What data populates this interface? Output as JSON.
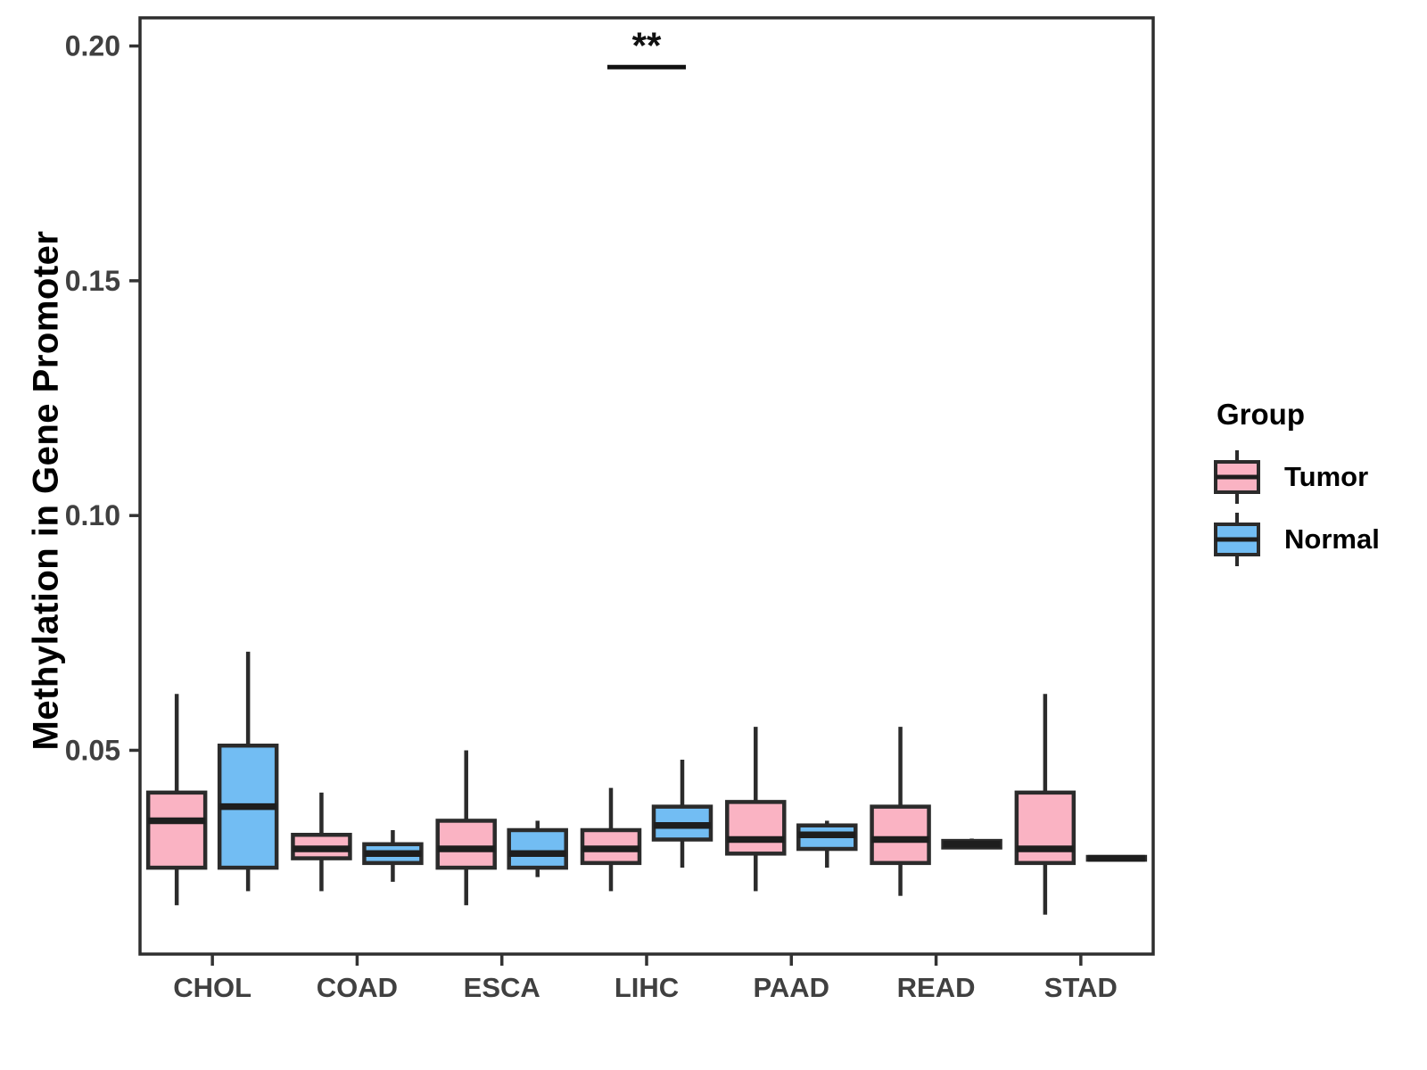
{
  "page": {
    "background": "#ffffff"
  },
  "chart_data": {
    "type": "boxplot",
    "title": "",
    "xlabel": "",
    "ylabel": "Methylation in Gene Promoter",
    "categories": [
      "CHOL",
      "COAD",
      "ESCA",
      "LIHC",
      "PAAD",
      "READ",
      "STAD"
    ],
    "yticks": [
      0.05,
      0.1,
      0.15,
      0.2
    ],
    "ylim": [
      0.0066,
      0.206
    ],
    "grid": false,
    "legend": {
      "title": "Group",
      "position": "right",
      "entries": [
        {
          "label": "Tumor",
          "fill": "#FAB3C3"
        },
        {
          "label": "Normal",
          "fill": "#72BDF3"
        }
      ]
    },
    "series": [
      {
        "name": "Tumor",
        "fill": "#FAB3C3",
        "boxes": [
          {
            "category": "CHOL",
            "low": 0.017,
            "q1": 0.025,
            "median": 0.035,
            "q3": 0.041,
            "high": 0.062
          },
          {
            "category": "COAD",
            "low": 0.02,
            "q1": 0.027,
            "median": 0.029,
            "q3": 0.032,
            "high": 0.041
          },
          {
            "category": "ESCA",
            "low": 0.017,
            "q1": 0.025,
            "median": 0.029,
            "q3": 0.035,
            "high": 0.05
          },
          {
            "category": "LIHC",
            "low": 0.02,
            "q1": 0.026,
            "median": 0.029,
            "q3": 0.033,
            "high": 0.042
          },
          {
            "category": "PAAD",
            "low": 0.02,
            "q1": 0.028,
            "median": 0.031,
            "q3": 0.039,
            "high": 0.055
          },
          {
            "category": "READ",
            "low": 0.019,
            "q1": 0.026,
            "median": 0.031,
            "q3": 0.038,
            "high": 0.055
          },
          {
            "category": "STAD",
            "low": 0.015,
            "q1": 0.026,
            "median": 0.029,
            "q3": 0.041,
            "high": 0.062
          }
        ]
      },
      {
        "name": "Normal",
        "fill": "#72BDF3",
        "boxes": [
          {
            "category": "CHOL",
            "low": 0.02,
            "q1": 0.025,
            "median": 0.038,
            "q3": 0.051,
            "high": 0.071
          },
          {
            "category": "COAD",
            "low": 0.022,
            "q1": 0.026,
            "median": 0.028,
            "q3": 0.03,
            "high": 0.033
          },
          {
            "category": "ESCA",
            "low": 0.023,
            "q1": 0.025,
            "median": 0.028,
            "q3": 0.033,
            "high": 0.035
          },
          {
            "category": "LIHC",
            "low": 0.025,
            "q1": 0.031,
            "median": 0.034,
            "q3": 0.038,
            "high": 0.048
          },
          {
            "category": "PAAD",
            "low": 0.025,
            "q1": 0.029,
            "median": 0.032,
            "q3": 0.034,
            "high": 0.035
          },
          {
            "category": "READ",
            "low": 0.029,
            "q1": 0.0293,
            "median": 0.03,
            "q3": 0.0307,
            "high": 0.0312
          },
          {
            "category": "STAD",
            "low": 0.0266,
            "q1": 0.0267,
            "median": 0.027,
            "q3": 0.0273,
            "high": 0.0274
          }
        ]
      }
    ],
    "annotations": [
      {
        "type": "significance-bracket",
        "category": "LIHC",
        "label": "**",
        "y": 0.1955
      }
    ],
    "styles": {
      "box_stroke": "#2B2B2B",
      "median_stroke": "#1E1E1E",
      "panel_border": "#2E2E2E",
      "tick_color": "#333333",
      "tick_label_color": "#404040",
      "axis_title_color": "#000000",
      "annotation_color": "#111111"
    }
  }
}
